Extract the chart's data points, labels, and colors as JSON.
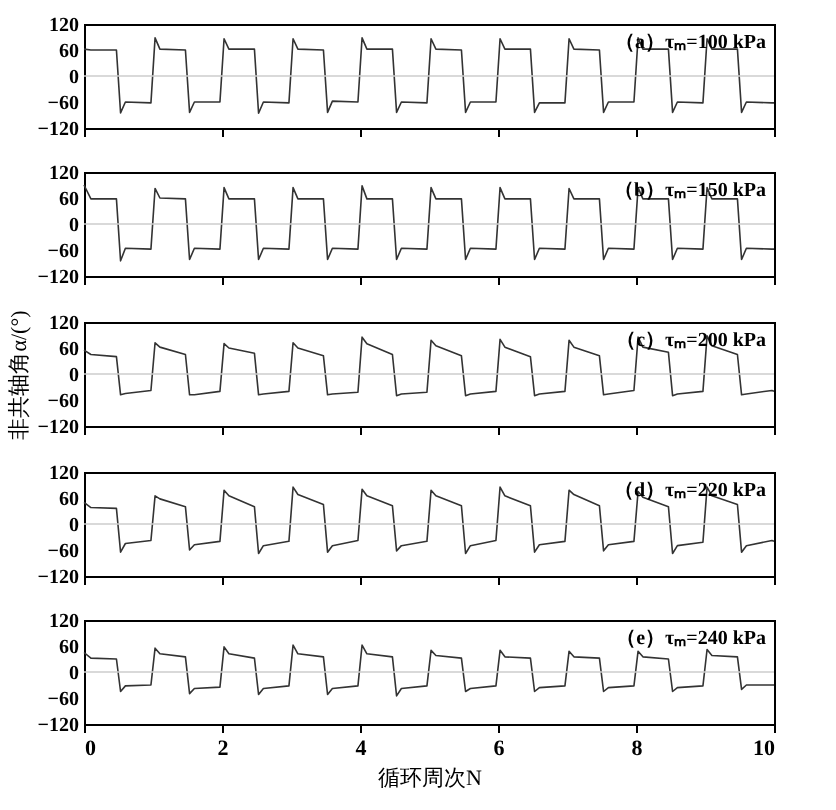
{
  "chart_data": [
    {
      "type": "line",
      "annotations": [
        "（a）τₘ=100 kPa"
      ],
      "x": [
        0,
        0.1,
        0.47,
        0.53,
        0.6,
        0.97,
        1.03,
        1.1,
        1.47,
        1.53,
        1.6,
        1.97,
        2.03,
        2.1,
        2.47,
        2.53,
        2.6,
        2.97,
        3.03,
        3.1,
        3.47,
        3.53,
        3.6,
        3.97,
        4.03,
        4.1,
        4.47,
        4.53,
        4.6,
        4.97,
        5.03,
        5.1,
        5.47,
        5.53,
        5.6,
        5.97,
        6.03,
        6.1,
        6.47,
        6.53,
        6.6,
        6.97,
        7.03,
        7.1,
        7.47,
        7.53,
        7.6,
        7.97,
        8.03,
        8.1,
        8.47,
        8.53,
        8.6,
        8.97,
        9.03,
        9.1,
        9.47,
        9.53,
        9.6,
        9.97,
        10
      ],
      "series": [
        {
          "color": "#333333",
          "values": [
            62,
            60,
            60,
            -85,
            -60,
            -62,
            88,
            62,
            60,
            -84,
            -60,
            -60,
            86,
            62,
            62,
            -86,
            -60,
            -62,
            86,
            62,
            60,
            -84,
            -58,
            -60,
            88,
            62,
            62,
            -84,
            -60,
            -62,
            86,
            62,
            60,
            -84,
            -60,
            -60,
            86,
            62,
            62,
            -84,
            -62,
            -62,
            86,
            62,
            60,
            -84,
            -60,
            -60,
            88,
            62,
            62,
            -84,
            -60,
            -62,
            86,
            62,
            62,
            -84,
            -60,
            -62,
            -62
          ]
        }
      ],
      "xlim": [
        0,
        10
      ],
      "xticks": [
        0,
        2,
        4,
        6,
        8,
        10
      ],
      "ylim": [
        -120,
        120
      ],
      "yticks": [
        -120,
        -60,
        0,
        60,
        120
      ],
      "tick_labels": "y",
      "grid": false,
      "ref_lines": [
        {
          "axis": "y",
          "value": 0,
          "color": "#cccccc"
        }
      ]
    },
    {
      "type": "line",
      "annotations": [
        "（b）τₘ=150 kPa"
      ],
      "x": [
        0,
        0.1,
        0.47,
        0.53,
        0.6,
        0.97,
        1.03,
        1.1,
        1.47,
        1.53,
        1.6,
        1.97,
        2.03,
        2.1,
        2.47,
        2.53,
        2.6,
        2.97,
        3.03,
        3.1,
        3.47,
        3.53,
        3.6,
        3.97,
        4.03,
        4.1,
        4.47,
        4.53,
        4.6,
        4.97,
        5.03,
        5.1,
        5.47,
        5.53,
        5.6,
        5.97,
        6.03,
        6.1,
        6.47,
        6.53,
        6.6,
        6.97,
        7.03,
        7.1,
        7.47,
        7.53,
        7.6,
        7.97,
        8.03,
        8.1,
        8.47,
        8.53,
        8.6,
        8.97,
        9.03,
        9.1,
        9.47,
        9.53,
        9.6,
        9.97,
        10
      ],
      "series": [
        {
          "color": "#333333",
          "values": [
            90,
            58,
            58,
            -85,
            -56,
            -58,
            82,
            60,
            58,
            -82,
            -56,
            -58,
            84,
            58,
            58,
            -82,
            -56,
            -58,
            84,
            58,
            58,
            -82,
            -56,
            -58,
            88,
            58,
            58,
            -82,
            -56,
            -58,
            84,
            58,
            58,
            -82,
            -56,
            -58,
            84,
            58,
            58,
            -82,
            -56,
            -58,
            82,
            58,
            58,
            -82,
            -56,
            -58,
            84,
            58,
            58,
            -82,
            -56,
            -58,
            84,
            58,
            58,
            -82,
            -56,
            -58,
            -58
          ]
        }
      ],
      "xlim": [
        0,
        10
      ],
      "xticks": [
        0,
        2,
        4,
        6,
        8,
        10
      ],
      "ylim": [
        -120,
        120
      ],
      "yticks": [
        -120,
        -60,
        0,
        60,
        120
      ],
      "tick_labels": "y",
      "grid": false,
      "ref_lines": [
        {
          "axis": "y",
          "value": 0,
          "color": "#cccccc"
        }
      ]
    },
    {
      "type": "line",
      "ylabel": "非共轴角α/(°)",
      "annotations": [
        "（c）τₘ=200 kPa"
      ],
      "x": [
        0,
        0.1,
        0.47,
        0.53,
        0.6,
        0.97,
        1.03,
        1.1,
        1.47,
        1.53,
        1.6,
        1.97,
        2.03,
        2.1,
        2.47,
        2.53,
        2.6,
        2.97,
        3.03,
        3.1,
        3.47,
        3.53,
        3.6,
        3.97,
        4.03,
        4.1,
        4.47,
        4.53,
        4.6,
        4.97,
        5.03,
        5.1,
        5.47,
        5.53,
        5.6,
        5.97,
        6.03,
        6.1,
        6.47,
        6.53,
        6.6,
        6.97,
        7.03,
        7.1,
        7.47,
        7.53,
        7.6,
        7.97,
        8.03,
        8.1,
        8.47,
        8.53,
        8.6,
        8.97,
        9.03,
        9.1,
        9.47,
        9.53,
        9.6,
        9.97,
        10
      ],
      "series": [
        {
          "color": "#333333",
          "values": [
            55,
            45,
            40,
            -48,
            -45,
            -38,
            72,
            62,
            45,
            -48,
            -48,
            -40,
            70,
            60,
            48,
            -48,
            -46,
            -40,
            72,
            60,
            42,
            -48,
            -46,
            -42,
            85,
            70,
            45,
            -50,
            -46,
            -42,
            78,
            65,
            42,
            -50,
            -46,
            -40,
            80,
            62,
            40,
            -50,
            -46,
            -40,
            78,
            62,
            42,
            -48,
            -46,
            -38,
            85,
            62,
            50,
            -50,
            -46,
            -40,
            88,
            65,
            45,
            -48,
            -46,
            -38,
            -40
          ]
        }
      ],
      "xlim": [
        0,
        10
      ],
      "xticks": [
        0,
        2,
        4,
        6,
        8,
        10
      ],
      "ylim": [
        -120,
        120
      ],
      "yticks": [
        -120,
        -60,
        0,
        60,
        120
      ],
      "tick_labels": "y",
      "grid": false,
      "ref_lines": [
        {
          "axis": "y",
          "value": 0,
          "color": "#cccccc"
        }
      ]
    },
    {
      "type": "line",
      "annotations": [
        "（d）τₘ=220 kPa"
      ],
      "x": [
        0,
        0.1,
        0.47,
        0.53,
        0.6,
        0.97,
        1.03,
        1.1,
        1.47,
        1.53,
        1.6,
        1.97,
        2.03,
        2.1,
        2.47,
        2.53,
        2.6,
        2.97,
        3.03,
        3.1,
        3.47,
        3.53,
        3.6,
        3.97,
        4.03,
        4.1,
        4.47,
        4.53,
        4.6,
        4.97,
        5.03,
        5.1,
        5.47,
        5.53,
        5.6,
        5.97,
        6.03,
        6.1,
        6.47,
        6.53,
        6.6,
        6.97,
        7.03,
        7.1,
        7.47,
        7.53,
        7.6,
        7.97,
        8.03,
        8.1,
        8.47,
        8.53,
        8.6,
        8.97,
        9.03,
        9.1,
        9.47,
        9.53,
        9.6,
        9.97,
        10
      ],
      "series": [
        {
          "color": "#333333",
          "values": [
            50,
            38,
            36,
            -65,
            -45,
            -38,
            65,
            58,
            40,
            -60,
            -48,
            -40,
            78,
            65,
            40,
            -68,
            -50,
            -40,
            85,
            68,
            45,
            -65,
            -50,
            -38,
            80,
            65,
            42,
            -62,
            -50,
            -40,
            78,
            65,
            42,
            -68,
            -50,
            -38,
            85,
            65,
            42,
            -65,
            -48,
            -40,
            78,
            68,
            42,
            -62,
            -48,
            -40,
            75,
            62,
            40,
            -68,
            -50,
            -42,
            85,
            65,
            45,
            -65,
            -50,
            -38,
            -40
          ]
        }
      ],
      "xlim": [
        0,
        10
      ],
      "xticks": [
        0,
        2,
        4,
        6,
        8,
        10
      ],
      "ylim": [
        -120,
        120
      ],
      "yticks": [
        -120,
        -60,
        0,
        60,
        120
      ],
      "tick_labels": "y",
      "grid": false,
      "ref_lines": [
        {
          "axis": "y",
          "value": 0,
          "color": "#cccccc"
        }
      ]
    },
    {
      "type": "line",
      "xlabel": "循环周次N",
      "annotations": [
        "（e）τₘ=240 kPa"
      ],
      "x": [
        0,
        0.1,
        0.47,
        0.53,
        0.6,
        0.97,
        1.03,
        1.1,
        1.47,
        1.53,
        1.6,
        1.97,
        2.03,
        2.1,
        2.47,
        2.53,
        2.6,
        2.97,
        3.03,
        3.1,
        3.47,
        3.53,
        3.6,
        3.97,
        4.03,
        4.1,
        4.47,
        4.53,
        4.6,
        4.97,
        5.03,
        5.1,
        5.47,
        5.53,
        5.6,
        5.97,
        6.03,
        6.1,
        6.47,
        6.53,
        6.6,
        6.97,
        7.03,
        7.1,
        7.47,
        7.53,
        7.6,
        7.97,
        8.03,
        8.1,
        8.47,
        8.53,
        8.6,
        8.97,
        9.03,
        9.1,
        9.47,
        9.53,
        9.6,
        9.97,
        10
      ],
      "series": [
        {
          "color": "#333333",
          "values": [
            45,
            32,
            30,
            -45,
            -32,
            -30,
            55,
            42,
            35,
            -50,
            -38,
            -35,
            58,
            42,
            32,
            -52,
            -38,
            -32,
            62,
            42,
            35,
            -52,
            -38,
            -32,
            62,
            42,
            35,
            -55,
            -38,
            -32,
            50,
            38,
            32,
            -45,
            -38,
            -32,
            50,
            35,
            32,
            -45,
            -36,
            -32,
            48,
            35,
            32,
            -45,
            -36,
            -32,
            48,
            35,
            30,
            -45,
            -36,
            -32,
            52,
            38,
            35,
            -40,
            -30,
            -30,
            -30
          ]
        }
      ],
      "xlim": [
        0,
        10
      ],
      "xticks": [
        0,
        2,
        4,
        6,
        8,
        10
      ],
      "ylim": [
        -120,
        120
      ],
      "yticks": [
        -120,
        -60,
        0,
        60,
        120
      ],
      "grid": false,
      "ref_lines": [
        {
          "axis": "y",
          "value": 0,
          "color": "#cccccc"
        }
      ]
    }
  ]
}
